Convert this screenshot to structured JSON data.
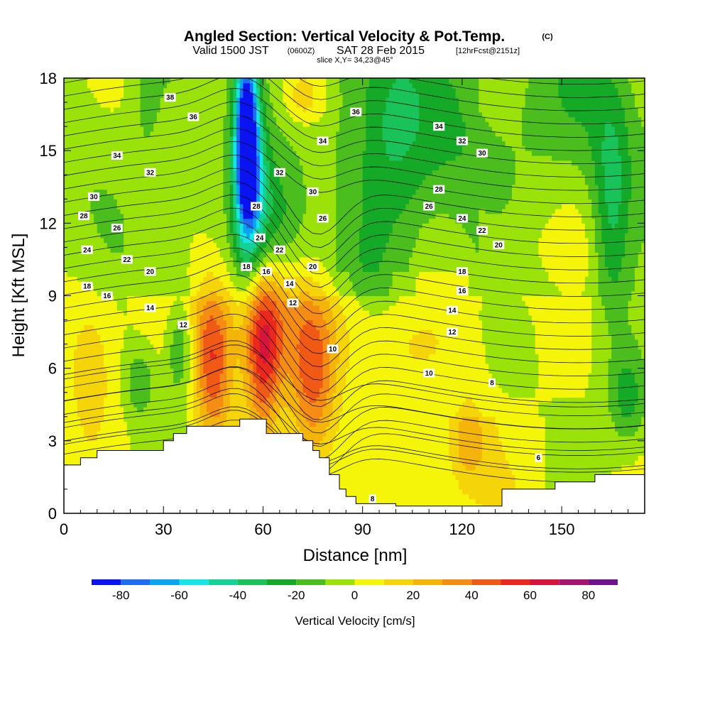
{
  "title": {
    "main": "Angled Section: Vertical Velocity & Pot.Temp.",
    "main_unit": "(C)",
    "valid_prefix": "Valid 1500 JST",
    "valid_utc": "(0600Z)",
    "valid_date": "SAT 28 Feb 2015",
    "forecast": "[12hrFcst@2151z]",
    "slice": "slice X,Y= 34,23@45°"
  },
  "chart_data": {
    "type": "heatmap",
    "xlabel": "Distance [nm]",
    "ylabel": "Height [Kft MSL]",
    "xlim": [
      0,
      175
    ],
    "ylim": [
      0,
      18
    ],
    "x_ticks": [
      0,
      30,
      60,
      90,
      120,
      150
    ],
    "y_ticks": [
      0,
      3,
      6,
      9,
      12,
      15,
      18
    ],
    "fill_field": "Vertical Velocity [cm/s]",
    "contour_field": "Potential Temperature (C)",
    "colorbar": {
      "label": "Vertical Velocity [cm/s]",
      "tick_labels": [
        -80,
        -60,
        -40,
        -20,
        0,
        20,
        40,
        60,
        80
      ],
      "levels": [
        -90,
        -80,
        -70,
        -60,
        -50,
        -40,
        -30,
        -20,
        -10,
        0,
        10,
        20,
        30,
        40,
        50,
        60,
        70,
        80,
        90
      ],
      "colors": [
        "#0a14f0",
        "#1e6ef5",
        "#0aa5f0",
        "#14e6e6",
        "#14d296",
        "#19c35a",
        "#14aa28",
        "#4bbe1e",
        "#9be10a",
        "#f5f50a",
        "#f5d50a",
        "#f5b40a",
        "#f58c14",
        "#f05a14",
        "#eb281e",
        "#d7143c",
        "#a5146e",
        "#6e148c"
      ]
    },
    "terrain_kft": [
      [
        0,
        2.0
      ],
      [
        5,
        2.3
      ],
      [
        10,
        2.6
      ],
      [
        20,
        2.6
      ],
      [
        30,
        3.0
      ],
      [
        33,
        3.3
      ],
      [
        37,
        3.6
      ],
      [
        52,
        3.6
      ],
      [
        53,
        3.9
      ],
      [
        58,
        3.9
      ],
      [
        61,
        3.3
      ],
      [
        70,
        3.3
      ],
      [
        72,
        3.0
      ],
      [
        75,
        2.6
      ],
      [
        77,
        2.3
      ],
      [
        80,
        1.6
      ],
      [
        83,
        1.0
      ],
      [
        85,
        0.7
      ],
      [
        88,
        0.4
      ],
      [
        100,
        0.3
      ],
      [
        131,
        0.3
      ],
      [
        132,
        1.0
      ],
      [
        143,
        1.0
      ],
      [
        148,
        1.3
      ],
      [
        155,
        1.3
      ],
      [
        160,
        1.6
      ],
      [
        175,
        1.6
      ]
    ],
    "theta_labels": [
      {
        "value": 38,
        "x": 32,
        "y": 17.2
      },
      {
        "value": 36,
        "x": 39,
        "y": 16.4
      },
      {
        "value": 34,
        "x": 16,
        "y": 14.8
      },
      {
        "value": 32,
        "x": 26,
        "y": 14.1
      },
      {
        "value": 30,
        "x": 9,
        "y": 13.1
      },
      {
        "value": 28,
        "x": 6,
        "y": 12.3
      },
      {
        "value": 26,
        "x": 16,
        "y": 11.8
      },
      {
        "value": 24,
        "x": 7,
        "y": 10.9
      },
      {
        "value": 22,
        "x": 19,
        "y": 10.5
      },
      {
        "value": 20,
        "x": 26,
        "y": 10.0
      },
      {
        "value": 18,
        "x": 7,
        "y": 9.4
      },
      {
        "value": 16,
        "x": 13,
        "y": 9.0
      },
      {
        "value": 14,
        "x": 26,
        "y": 8.5
      },
      {
        "value": 12,
        "x": 36,
        "y": 7.8
      },
      {
        "value": 18,
        "x": 55,
        "y": 10.2
      },
      {
        "value": 16,
        "x": 61,
        "y": 10.0
      },
      {
        "value": 14,
        "x": 68,
        "y": 9.5
      },
      {
        "value": 12,
        "x": 69,
        "y": 8.7
      },
      {
        "value": 32,
        "x": 65,
        "y": 14.1
      },
      {
        "value": 30,
        "x": 75,
        "y": 13.3
      },
      {
        "value": 28,
        "x": 58,
        "y": 12.7
      },
      {
        "value": 26,
        "x": 78,
        "y": 12.2
      },
      {
        "value": 24,
        "x": 59,
        "y": 11.4
      },
      {
        "value": 22,
        "x": 65,
        "y": 10.9
      },
      {
        "value": 20,
        "x": 75,
        "y": 10.2
      },
      {
        "value": 34,
        "x": 78,
        "y": 15.4
      },
      {
        "value": 36,
        "x": 88,
        "y": 16.6
      },
      {
        "value": 34,
        "x": 113,
        "y": 16.0
      },
      {
        "value": 32,
        "x": 120,
        "y": 15.4
      },
      {
        "value": 30,
        "x": 126,
        "y": 14.9
      },
      {
        "value": 28,
        "x": 113,
        "y": 13.4
      },
      {
        "value": 26,
        "x": 110,
        "y": 12.7
      },
      {
        "value": 24,
        "x": 120,
        "y": 12.2
      },
      {
        "value": 22,
        "x": 126,
        "y": 11.7
      },
      {
        "value": 20,
        "x": 131,
        "y": 11.1
      },
      {
        "value": 18,
        "x": 120,
        "y": 10.0
      },
      {
        "value": 16,
        "x": 120,
        "y": 9.2
      },
      {
        "value": 14,
        "x": 117,
        "y": 8.4
      },
      {
        "value": 12,
        "x": 117,
        "y": 7.5
      },
      {
        "value": 10,
        "x": 81,
        "y": 6.8
      },
      {
        "value": 10,
        "x": 110,
        "y": 5.8
      },
      {
        "value": 8,
        "x": 129,
        "y": 5.4
      },
      {
        "value": 6,
        "x": 143,
        "y": 2.3
      },
      {
        "value": 8,
        "x": 93,
        "y": 0.6
      }
    ],
    "updrafts": [
      {
        "x": 45,
        "y": 6.0,
        "sx": 4,
        "sy": 2.2,
        "w": 45
      },
      {
        "x": 60,
        "y": 6.8,
        "sx": 4,
        "sy": 2.5,
        "w": 55
      },
      {
        "x": 75,
        "y": 5.2,
        "sx": 5,
        "sy": 2.2,
        "w": 40
      },
      {
        "x": 70,
        "y": 8.0,
        "sx": 10,
        "sy": 1.6,
        "w": 18
      },
      {
        "x": 44,
        "y": 8.1,
        "sx": 8,
        "sy": 1.5,
        "w": 14
      },
      {
        "x": 8,
        "y": 6.2,
        "sx": 5,
        "sy": 2.4,
        "w": 18
      },
      {
        "x": 122,
        "y": 3.0,
        "sx": 4,
        "sy": 1.3,
        "w": 22
      },
      {
        "x": 72,
        "y": 17.3,
        "sx": 4,
        "sy": 0.8,
        "w": 22
      },
      {
        "x": 100,
        "y": 6.8,
        "sx": 14,
        "sy": 1.3,
        "w": 10
      },
      {
        "x": 140,
        "y": 10.7,
        "sx": 14,
        "sy": 1.4,
        "w": 8
      }
    ],
    "downdrafts": [
      {
        "x": 55,
        "y": 16.0,
        "sx": 2.4,
        "sy": 2.6,
        "w": -85
      },
      {
        "x": 56,
        "y": 13.5,
        "sx": 3.5,
        "sy": 2.6,
        "w": -45
      },
      {
        "x": 62,
        "y": 12.0,
        "sx": 6,
        "sy": 1.8,
        "w": -20
      },
      {
        "x": 98,
        "y": 15.5,
        "sx": 8,
        "sy": 3.2,
        "w": -22
      },
      {
        "x": 165,
        "y": 12.5,
        "sx": 4,
        "sy": 3.2,
        "w": -28
      },
      {
        "x": 145,
        "y": 16.5,
        "sx": 20,
        "sy": 2.2,
        "w": -12
      },
      {
        "x": 25,
        "y": 17.2,
        "sx": 3,
        "sy": 2.0,
        "w": -10
      },
      {
        "x": 35,
        "y": 7.0,
        "sx": 3,
        "sy": 1.5,
        "w": -25
      },
      {
        "x": 23,
        "y": 5.4,
        "sx": 3,
        "sy": 1.0,
        "w": -20
      },
      {
        "x": 170,
        "y": 4.8,
        "sx": 4,
        "sy": 1.4,
        "w": -25
      }
    ]
  }
}
